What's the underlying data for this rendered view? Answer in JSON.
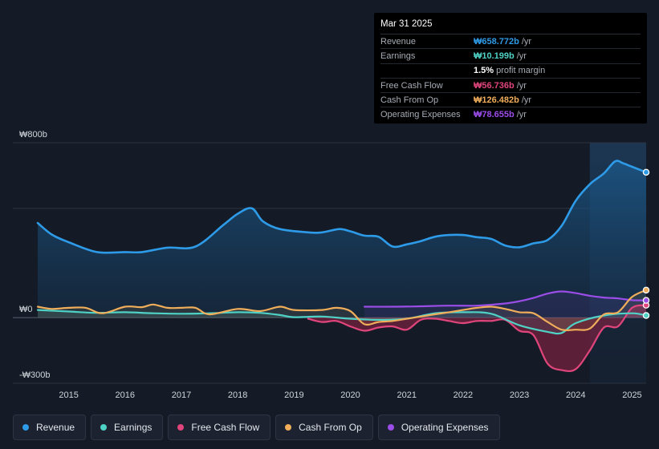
{
  "tooltip": {
    "date": "Mar 31 2025",
    "rows": [
      {
        "label": "Revenue",
        "value": "₩658.772b",
        "unit": "/yr",
        "color": "#2e9be8"
      },
      {
        "label": "Earnings",
        "value": "₩10.199b",
        "unit": "/yr",
        "color": "#4fd1c5"
      },
      {
        "label": "",
        "value": "1.5%",
        "unit": "profit margin",
        "color": "#ffffff"
      },
      {
        "label": "Free Cash Flow",
        "value": "₩56.736b",
        "unit": "/yr",
        "color": "#e0457b"
      },
      {
        "label": "Cash From Op",
        "value": "₩126.482b",
        "unit": "/yr",
        "color": "#f0ad5a"
      },
      {
        "label": "Operating Expenses",
        "value": "₩78.655b",
        "unit": "/yr",
        "color": "#9b4de8"
      }
    ]
  },
  "legend": [
    {
      "label": "Revenue",
      "color": "#2e9be8"
    },
    {
      "label": "Earnings",
      "color": "#4fd1c5"
    },
    {
      "label": "Free Cash Flow",
      "color": "#e0457b"
    },
    {
      "label": "Cash From Op",
      "color": "#f0ad5a"
    },
    {
      "label": "Operating Expenses",
      "color": "#9b4de8"
    }
  ],
  "chart_data": {
    "type": "line",
    "title": "",
    "xlabel": "",
    "ylabel": "",
    "x_range": [
      2014.45,
      2025.25
    ],
    "ylim": [
      -300,
      800
    ],
    "y_ticks": [
      {
        "value": 800,
        "label": "₩800b"
      },
      {
        "value": 0,
        "label": "₩0"
      },
      {
        "value": -300,
        "label": "-₩300b"
      }
    ],
    "x_ticks": [
      {
        "value": 2015,
        "label": "2015"
      },
      {
        "value": 2016,
        "label": "2016"
      },
      {
        "value": 2017,
        "label": "2017"
      },
      {
        "value": 2018,
        "label": "2018"
      },
      {
        "value": 2019,
        "label": "2019"
      },
      {
        "value": 2020,
        "label": "2020"
      },
      {
        "value": 2021,
        "label": "2021"
      },
      {
        "value": 2022,
        "label": "2022"
      },
      {
        "value": 2023,
        "label": "2023"
      },
      {
        "value": 2024,
        "label": "2024"
      },
      {
        "value": 2025,
        "label": "2025"
      }
    ],
    "highlight_from": 2024.25,
    "series": [
      {
        "name": "Revenue",
        "color": "#2e9be8",
        "fill": true,
        "x": [
          2014.45,
          2014.7,
          2015.0,
          2015.5,
          2016.0,
          2016.3,
          2016.75,
          2017.25,
          2017.75,
          2018.0,
          2018.25,
          2018.45,
          2018.75,
          2019.25,
          2019.5,
          2019.8,
          2020.0,
          2020.25,
          2020.5,
          2020.75,
          2021.0,
          2021.25,
          2021.5,
          2021.75,
          2022.0,
          2022.25,
          2022.5,
          2022.75,
          2023.0,
          2023.25,
          2023.5,
          2023.75,
          2024.0,
          2024.25,
          2024.5,
          2024.7,
          2024.85,
          2025.0,
          2025.25
        ],
        "y": [
          433,
          380,
          345,
          300,
          300,
          300,
          320,
          325,
          425,
          475,
          500,
          440,
          405,
          390,
          390,
          405,
          395,
          375,
          370,
          325,
          335,
          350,
          370,
          378,
          378,
          368,
          360,
          330,
          322,
          340,
          355,
          420,
          535,
          610,
          660,
          715,
          705,
          690,
          665
        ]
      },
      {
        "name": "Earnings",
        "color": "#4fd1c5",
        "x": [
          2014.45,
          2015.0,
          2015.5,
          2016.0,
          2016.5,
          2017.0,
          2017.5,
          2018.0,
          2018.4,
          2018.75,
          2019.0,
          2019.5,
          2020.0,
          2020.5,
          2021.0,
          2021.5,
          2022.0,
          2022.5,
          2023.0,
          2023.5,
          2023.75,
          2024.0,
          2024.5,
          2025.0,
          2025.25
        ],
        "y": [
          35,
          28,
          22,
          25,
          20,
          18,
          20,
          25,
          22,
          12,
          2,
          5,
          -5,
          -10,
          -5,
          20,
          25,
          18,
          -35,
          -65,
          -70,
          -25,
          10,
          20,
          10
        ]
      },
      {
        "name": "Free Cash Flow",
        "color": "#e0457b",
        "x": [
          2019.25,
          2019.5,
          2019.75,
          2020.0,
          2020.25,
          2020.5,
          2020.75,
          2021.0,
          2021.25,
          2021.5,
          2021.75,
          2022.0,
          2022.25,
          2022.5,
          2022.75,
          2023.0,
          2023.25,
          2023.5,
          2023.75,
          2024.0,
          2024.25,
          2024.5,
          2024.75,
          2025.0,
          2025.25
        ],
        "y": [
          -5,
          -20,
          -15,
          -40,
          -60,
          -45,
          -40,
          -55,
          -10,
          -5,
          -15,
          -25,
          -15,
          -15,
          -10,
          -60,
          -80,
          -210,
          -240,
          -235,
          -150,
          -45,
          -40,
          45,
          57
        ]
      },
      {
        "name": "Cash From Op",
        "color": "#f0ad5a",
        "x": [
          2014.45,
          2014.7,
          2015.0,
          2015.3,
          2015.6,
          2016.0,
          2016.3,
          2016.5,
          2016.75,
          2017.0,
          2017.25,
          2017.5,
          2018.0,
          2018.4,
          2018.75,
          2019.0,
          2019.5,
          2019.75,
          2020.0,
          2020.25,
          2020.5,
          2020.75,
          2021.0,
          2021.25,
          2021.5,
          2021.75,
          2022.0,
          2022.25,
          2022.5,
          2022.75,
          2023.0,
          2023.25,
          2023.5,
          2023.75,
          2024.0,
          2024.25,
          2024.5,
          2024.75,
          2025.0,
          2025.25
        ],
        "y": [
          50,
          40,
          45,
          45,
          20,
          50,
          48,
          60,
          45,
          45,
          45,
          15,
          40,
          30,
          50,
          35,
          35,
          45,
          30,
          -30,
          -20,
          -15,
          -5,
          5,
          15,
          25,
          35,
          45,
          50,
          40,
          25,
          20,
          -20,
          -55,
          -55,
          -50,
          15,
          25,
          95,
          126
        ]
      },
      {
        "name": "Operating Expenses",
        "color": "#9b4de8",
        "x": [
          2020.25,
          2020.75,
          2021.25,
          2021.75,
          2022.25,
          2022.75,
          2023.0,
          2023.25,
          2023.5,
          2023.75,
          2024.0,
          2024.25,
          2024.5,
          2024.75,
          2025.0,
          2025.25
        ],
        "y": [
          50,
          50,
          52,
          55,
          55,
          65,
          75,
          90,
          110,
          120,
          112,
          100,
          92,
          88,
          80,
          79
        ]
      }
    ]
  }
}
